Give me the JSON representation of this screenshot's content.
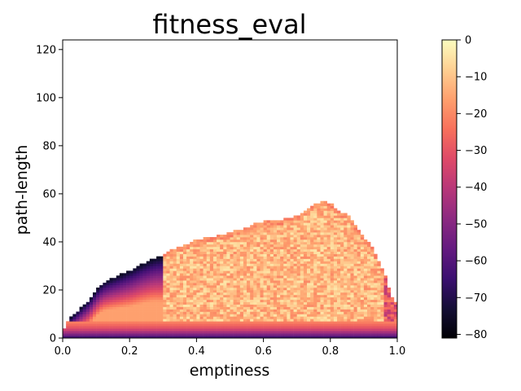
{
  "chart_data": {
    "type": "heatmap",
    "title": "fitness_eval",
    "xlabel": "emptiness",
    "ylabel": "path-length",
    "xlim": [
      0,
      1
    ],
    "ylim": [
      0,
      124
    ],
    "x_ticks": [
      "0.0",
      "0.2",
      "0.4",
      "0.6",
      "0.8",
      "1.0"
    ],
    "x_tick_values": [
      0,
      0.2,
      0.4,
      0.6,
      0.8,
      1.0
    ],
    "y_ticks": [
      "0",
      "20",
      "40",
      "60",
      "80",
      "100",
      "120"
    ],
    "y_tick_values": [
      0,
      20,
      40,
      60,
      80,
      100,
      120
    ],
    "grid": false,
    "colormap": "magma",
    "colorbar": {
      "range": [
        -81,
        0
      ],
      "ticks": [
        "0",
        "−10",
        "−20",
        "−30",
        "−40",
        "−50",
        "−60",
        "−70",
        "−80"
      ],
      "tick_values": [
        0,
        -10,
        -20,
        -30,
        -40,
        -50,
        -60,
        -70,
        -80
      ]
    },
    "boundary": {
      "upper_x": [
        0.0,
        0.02,
        0.05,
        0.08,
        0.1,
        0.12,
        0.15,
        0.2,
        0.24,
        0.27,
        0.3,
        0.33,
        0.37,
        0.4,
        0.45,
        0.5,
        0.55,
        0.58,
        0.62,
        0.65,
        0.7,
        0.73,
        0.76,
        0.78,
        0.8,
        0.83,
        0.86,
        0.88,
        0.9,
        0.93,
        0.96,
        0.98,
        1.0
      ],
      "upper_y": [
        2,
        8,
        12,
        16,
        20,
        23,
        25,
        28,
        31,
        33,
        34,
        37,
        39,
        41,
        42,
        44,
        46,
        48,
        49,
        49,
        51,
        53,
        56,
        57,
        56,
        53,
        50,
        46,
        42,
        37,
        28,
        18,
        14
      ]
    },
    "value_model": {
      "bottom_bands": [
        {
          "y_max": 1,
          "value": -62
        },
        {
          "y_max": 2,
          "value": -52
        },
        {
          "y_max": 3,
          "value": -44
        },
        {
          "y_max": 4,
          "value": -36
        },
        {
          "y_max": 5,
          "value": -30
        },
        {
          "y_max": 6,
          "value": -26
        },
        {
          "y_max": 7,
          "value": -22
        }
      ],
      "interior_value": -4,
      "edge_value": -76
    }
  }
}
